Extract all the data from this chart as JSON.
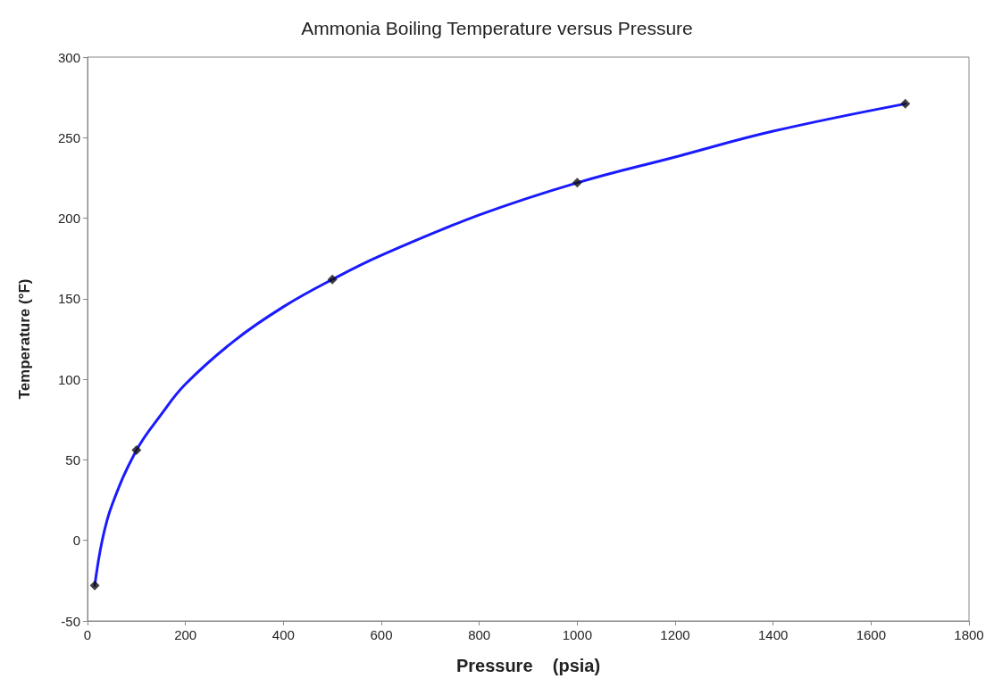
{
  "chart_data": {
    "type": "line",
    "title": "Ammonia Boiling Temperature versus Pressure",
    "xlabel": "Pressure    (psia)",
    "ylabel": "Temperature (°F)",
    "xlim": [
      0,
      1800
    ],
    "xticks": [
      0,
      200,
      400,
      600,
      800,
      1000,
      1200,
      1400,
      1600,
      1800
    ],
    "ylim": [
      -50,
      300
    ],
    "yticks": [
      -50,
      0,
      50,
      100,
      150,
      200,
      250,
      300
    ],
    "grid": false,
    "series": [
      {
        "type": "line",
        "color": "#1a1aff",
        "marker": "none",
        "line_style": "solid",
        "x": [
          14.7,
          30,
          50,
          100,
          150,
          200,
          300,
          400,
          500,
          600,
          800,
          1000,
          1200,
          1400,
          1670
        ],
        "values": [
          -28,
          0,
          22,
          56,
          78,
          97,
          124,
          145,
          162,
          177,
          202,
          222,
          238,
          254,
          271
        ]
      },
      {
        "type": "scatter",
        "color": "#111111",
        "marker": "diamond",
        "x": [
          14.7,
          100,
          500,
          1000,
          1670
        ],
        "values": [
          -28,
          56,
          162,
          222,
          271
        ]
      }
    ]
  }
}
